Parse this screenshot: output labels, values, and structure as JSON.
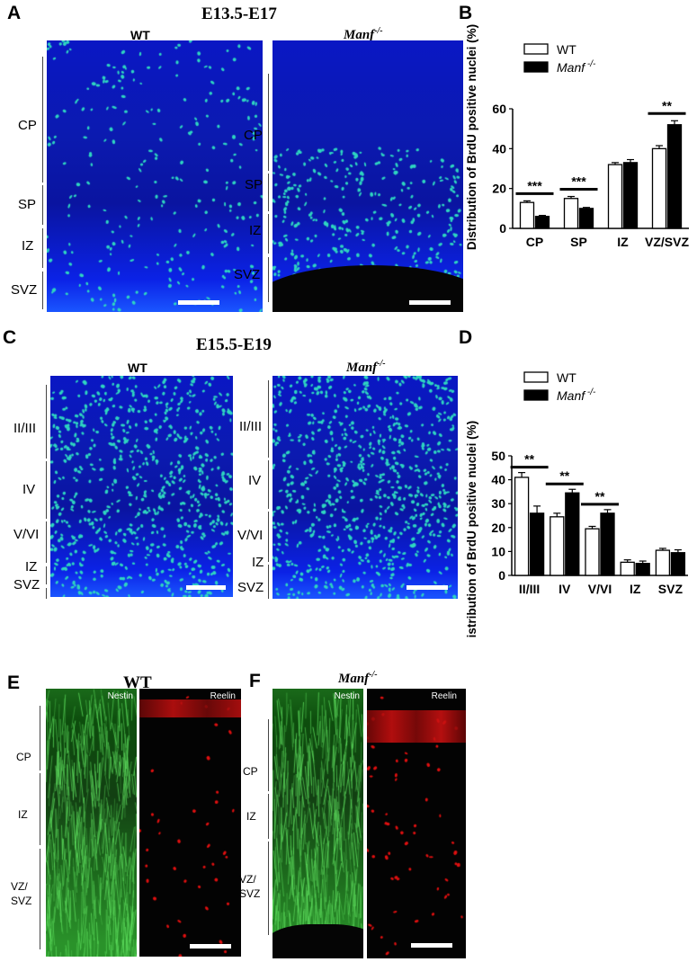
{
  "panels": {
    "A": {
      "label": "A",
      "title": "E13.5-E17",
      "left_genotype": "WT",
      "right_genotype": "Manf",
      "right_superscript": "-/-",
      "left_layers": [
        "CP",
        "SP",
        "IZ",
        "SVZ"
      ],
      "right_layers": [
        "CP",
        "SP",
        "IZ",
        "SVZ"
      ]
    },
    "B": {
      "label": "B"
    },
    "C": {
      "label": "C",
      "title": "E15.5-E19",
      "left_genotype": "WT",
      "right_genotype": "Manf",
      "right_superscript": "-/-",
      "left_layers": [
        "II/III",
        "IV",
        "V/VI",
        "IZ",
        "SVZ"
      ],
      "right_layers": [
        "II/III",
        "IV",
        "V/VI",
        "IZ",
        "SVZ"
      ]
    },
    "D": {
      "label": "D"
    },
    "E": {
      "label": "E",
      "genotype": "WT",
      "channel_left": "Nestin",
      "channel_right": "Reelin",
      "layers": [
        "CP",
        "IZ",
        "VZ/\nSVZ"
      ]
    },
    "F": {
      "label": "F",
      "genotype": "Manf",
      "superscript": "-/-",
      "channel_left": "Nestin",
      "channel_right": "Reelin",
      "layers": [
        "CP",
        "IZ",
        "VZ/\nSVZ"
      ]
    }
  },
  "colors": {
    "wt_fill": "#ffffff",
    "ko_fill": "#000000",
    "dapi": "#0b1ab4",
    "brdu": "#2fd6c0",
    "nestin": "#2fa02f",
    "reelin": "#e01010"
  },
  "chart_data": [
    {
      "type": "bar",
      "id": "B",
      "categories": [
        "CP",
        "SP",
        "IZ",
        "VZ/SVZ"
      ],
      "series": [
        {
          "name": "WT",
          "values": [
            13,
            15,
            32,
            40
          ],
          "errors": [
            0.8,
            1.0,
            1.0,
            1.5
          ]
        },
        {
          "name": "Manf",
          "name_superscript": "-/-",
          "values": [
            6,
            10,
            33,
            52
          ],
          "errors": [
            0.5,
            0.5,
            1.5,
            2.0
          ]
        }
      ],
      "significance": [
        "***",
        "***",
        "",
        "**"
      ],
      "ylabel": "Distribution of BrdU positive nuclei (%)",
      "ylim": [
        0,
        60
      ],
      "yticks": [
        0,
        20,
        40,
        60
      ],
      "legend": "top-left"
    },
    {
      "type": "bar",
      "id": "D",
      "categories": [
        "II/III",
        "IV",
        "V/VI",
        "IZ",
        "SVZ"
      ],
      "series": [
        {
          "name": "WT",
          "values": [
            41,
            24.5,
            19.5,
            5.5,
            10.5
          ],
          "errors": [
            2.0,
            1.5,
            1.0,
            1.0,
            0.8
          ]
        },
        {
          "name": "Manf",
          "name_superscript": "-/-",
          "values": [
            26,
            34.5,
            26,
            5,
            9.5
          ],
          "errors": [
            3.0,
            1.5,
            1.5,
            1.0,
            1.2
          ]
        }
      ],
      "significance": [
        "**",
        "**",
        "**",
        "",
        ""
      ],
      "ylabel": "Distribution of BrdU positive nuclei (%)",
      "ylim": [
        0,
        50
      ],
      "yticks": [
        0,
        10,
        20,
        30,
        40,
        50
      ],
      "legend": "top-left"
    }
  ]
}
